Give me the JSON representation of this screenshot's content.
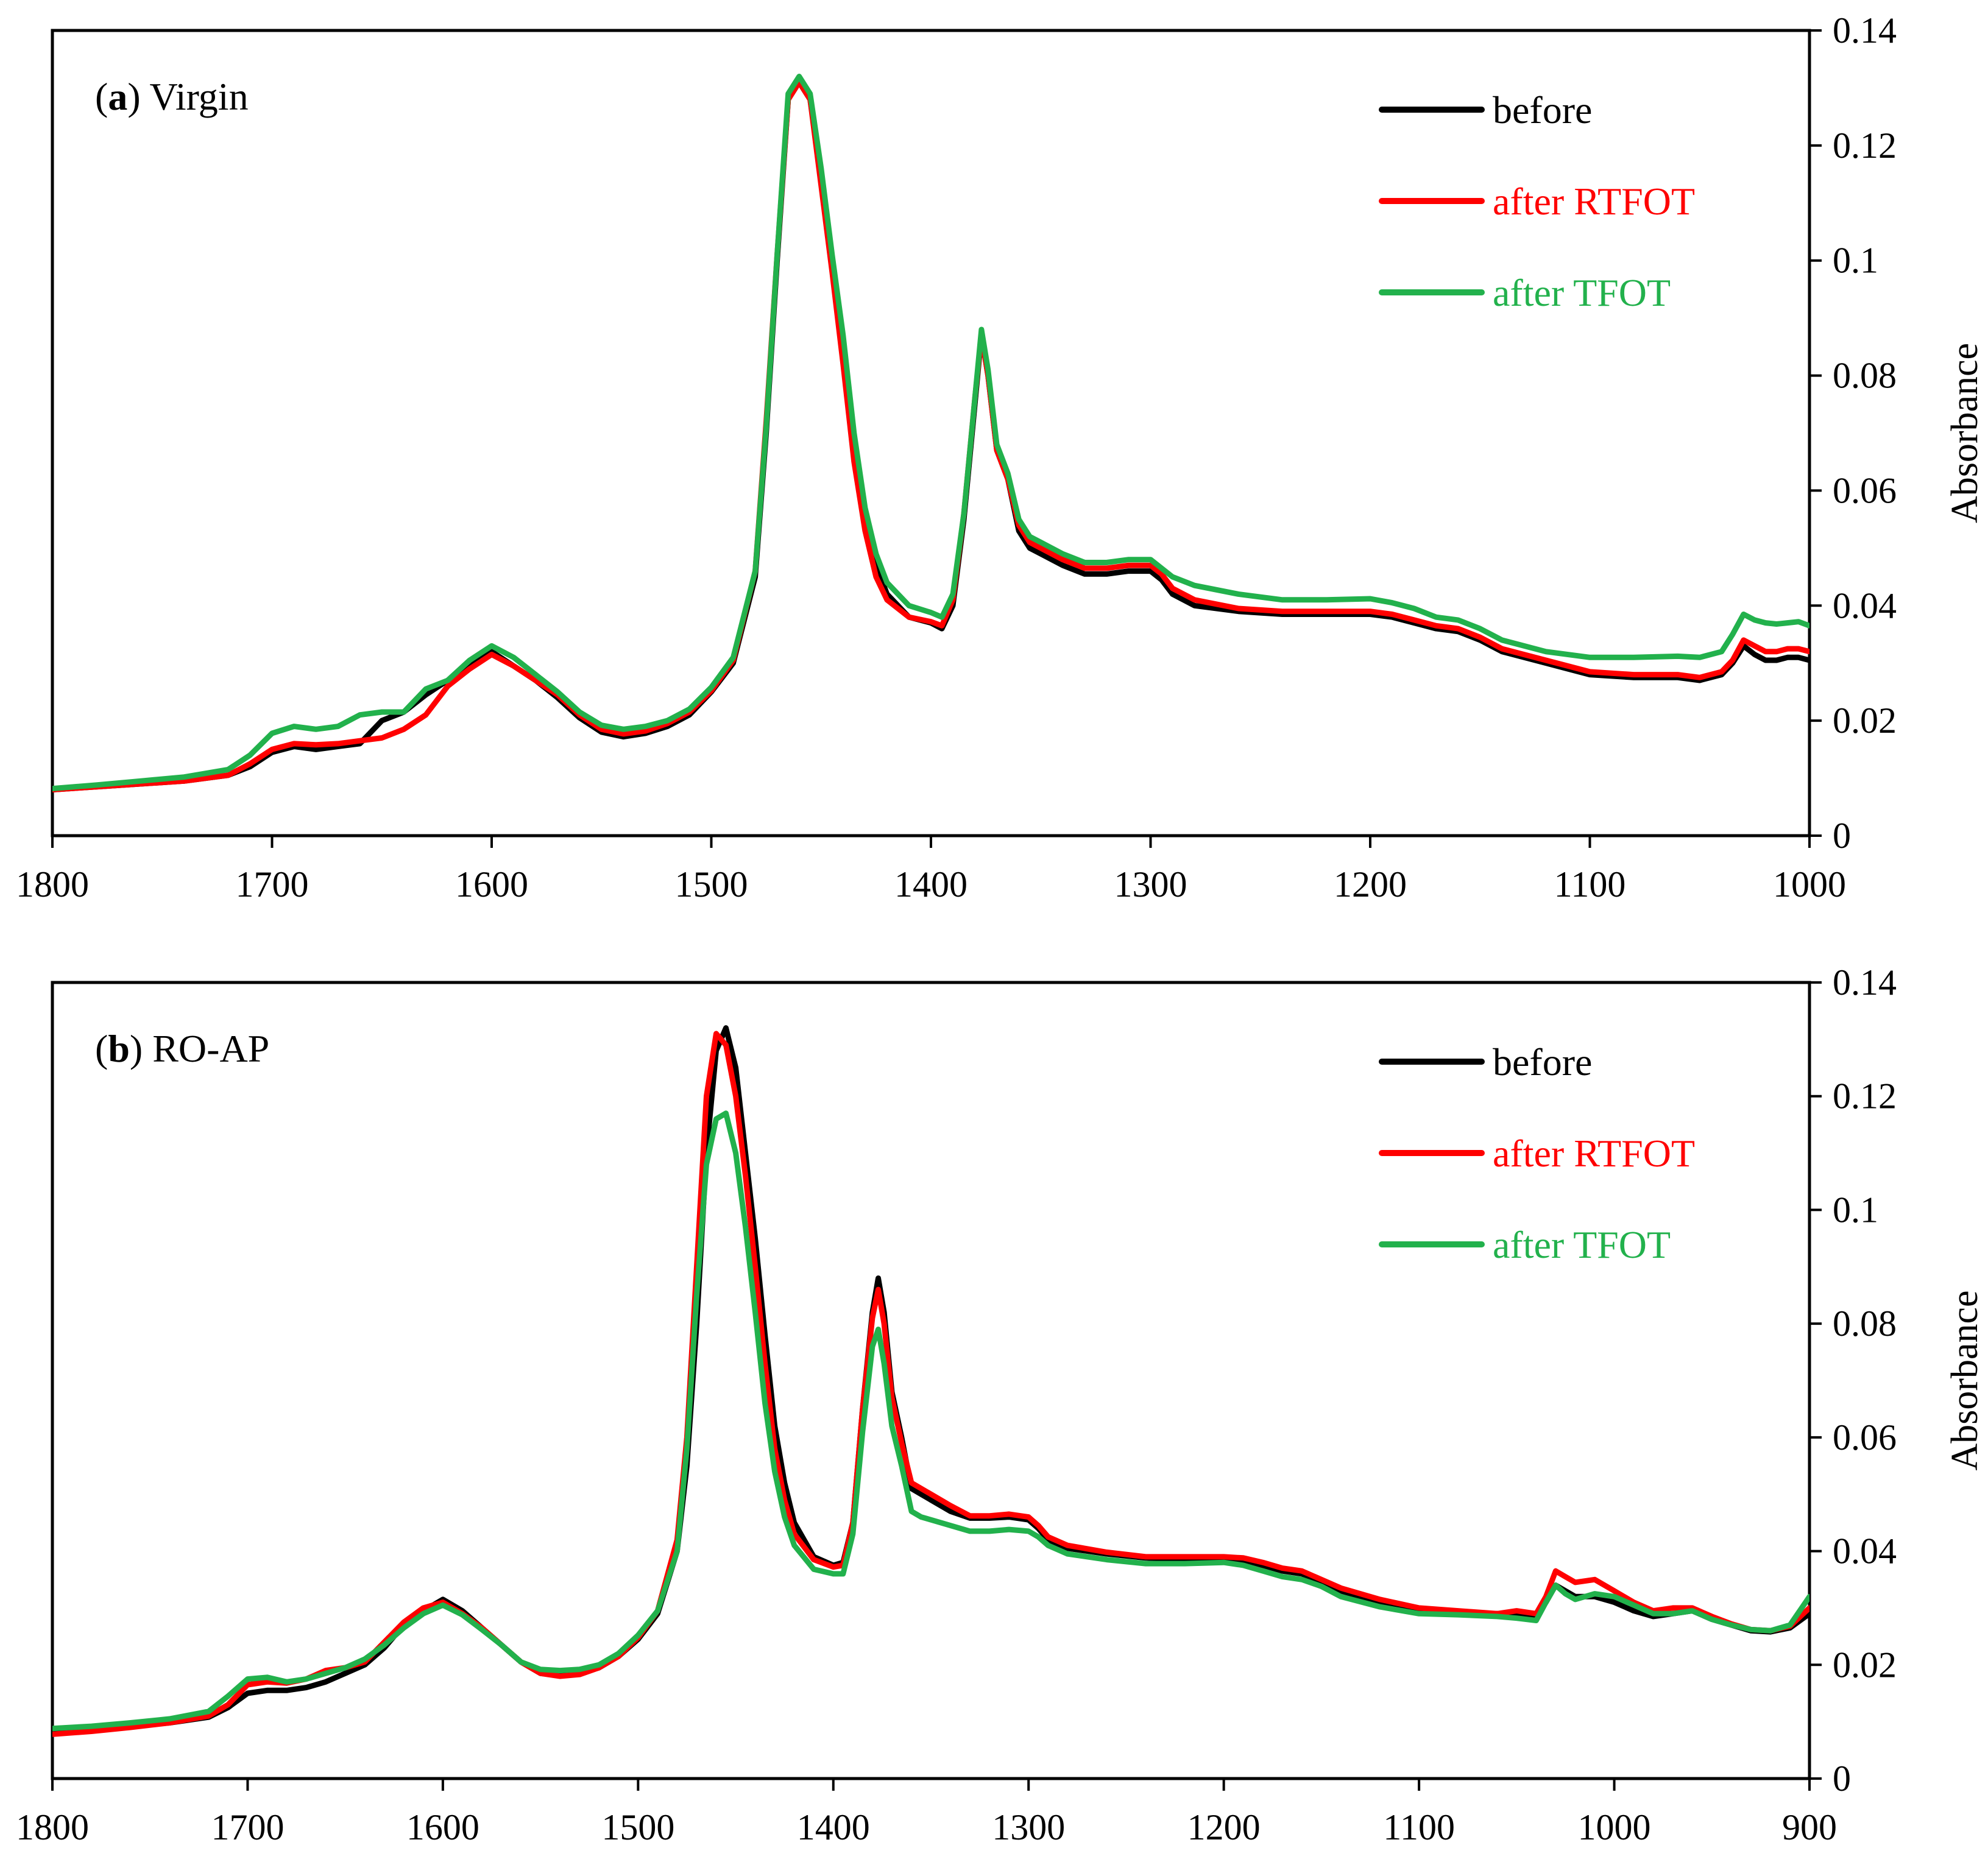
{
  "chart_data": [
    {
      "type": "line",
      "panel_label": "a",
      "title": "Virgin",
      "xlabel": "",
      "ylabel": "Absorbance",
      "xlim": [
        1800,
        1000
      ],
      "ylim": [
        0,
        0.14
      ],
      "x_ticks": [
        "1800",
        "1700",
        "1600",
        "1500",
        "1400",
        "1300",
        "1200",
        "1100",
        "1000"
      ],
      "x_tick_values": [
        1800,
        1700,
        1600,
        1500,
        1400,
        1300,
        1200,
        1100,
        1000
      ],
      "y_ticks": [
        "0",
        "0.02",
        "0.04",
        "0.06",
        "0.08",
        "0.1",
        "0.12",
        "0.14"
      ],
      "y_tick_values": [
        0,
        0.02,
        0.04,
        0.06,
        0.08,
        0.1,
        0.12,
        0.14
      ],
      "legend_position": "top-right",
      "grid": false,
      "x": [
        1800,
        1780,
        1760,
        1740,
        1720,
        1710,
        1700,
        1690,
        1680,
        1670,
        1660,
        1650,
        1640,
        1630,
        1620,
        1610,
        1600,
        1590,
        1580,
        1570,
        1560,
        1550,
        1540,
        1530,
        1520,
        1510,
        1500,
        1490,
        1480,
        1475,
        1470,
        1465,
        1460,
        1455,
        1450,
        1445,
        1440,
        1435,
        1430,
        1425,
        1420,
        1410,
        1400,
        1395,
        1390,
        1385,
        1380,
        1377,
        1374,
        1370,
        1365,
        1360,
        1355,
        1350,
        1340,
        1330,
        1320,
        1310,
        1300,
        1295,
        1290,
        1280,
        1260,
        1240,
        1220,
        1200,
        1190,
        1180,
        1170,
        1160,
        1150,
        1140,
        1120,
        1100,
        1080,
        1060,
        1050,
        1040,
        1035,
        1030,
        1025,
        1020,
        1015,
        1010,
        1005,
        1000
      ],
      "series": [
        {
          "name": "before",
          "color": "#000000",
          "values": [
            0.008,
            0.0085,
            0.009,
            0.0095,
            0.0105,
            0.012,
            0.0145,
            0.0155,
            0.015,
            0.0155,
            0.016,
            0.02,
            0.0215,
            0.0245,
            0.027,
            0.0295,
            0.032,
            0.0295,
            0.027,
            0.024,
            0.0205,
            0.018,
            0.0172,
            0.0178,
            0.019,
            0.021,
            0.025,
            0.03,
            0.045,
            0.07,
            0.1,
            0.128,
            0.131,
            0.128,
            0.115,
            0.1,
            0.085,
            0.068,
            0.055,
            0.047,
            0.042,
            0.038,
            0.037,
            0.036,
            0.04,
            0.055,
            0.075,
            0.087,
            0.08,
            0.067,
            0.062,
            0.053,
            0.05,
            0.049,
            0.047,
            0.0455,
            0.0455,
            0.046,
            0.046,
            0.0445,
            0.042,
            0.04,
            0.039,
            0.0385,
            0.0385,
            0.0385,
            0.038,
            0.037,
            0.036,
            0.0355,
            0.034,
            0.032,
            0.03,
            0.028,
            0.0275,
            0.0275,
            0.027,
            0.028,
            0.03,
            0.033,
            0.0315,
            0.0305,
            0.0305,
            0.031,
            0.031,
            0.0305
          ]
        },
        {
          "name": "after RTFOT",
          "color": "#ff0000",
          "values": [
            0.008,
            0.0085,
            0.009,
            0.0095,
            0.0105,
            0.0125,
            0.015,
            0.016,
            0.0158,
            0.016,
            0.0165,
            0.017,
            0.0185,
            0.021,
            0.026,
            0.029,
            0.0315,
            0.0295,
            0.027,
            0.0245,
            0.021,
            0.0185,
            0.0177,
            0.0182,
            0.0195,
            0.0215,
            0.0252,
            0.0305,
            0.046,
            0.072,
            0.101,
            0.128,
            0.131,
            0.128,
            0.113,
            0.098,
            0.082,
            0.065,
            0.053,
            0.045,
            0.041,
            0.038,
            0.0372,
            0.0365,
            0.041,
            0.056,
            0.076,
            0.087,
            0.08,
            0.067,
            0.062,
            0.054,
            0.051,
            0.05,
            0.048,
            0.0465,
            0.0465,
            0.047,
            0.047,
            0.0455,
            0.043,
            0.041,
            0.0395,
            0.039,
            0.039,
            0.039,
            0.0385,
            0.0375,
            0.0365,
            0.036,
            0.0345,
            0.0325,
            0.0305,
            0.0285,
            0.028,
            0.028,
            0.0275,
            0.0285,
            0.0305,
            0.034,
            0.033,
            0.032,
            0.032,
            0.0325,
            0.0325,
            0.032
          ]
        },
        {
          "name": "after TFOT",
          "color": "#22b14c",
          "values": [
            0.0082,
            0.0088,
            0.0095,
            0.0102,
            0.0115,
            0.014,
            0.0178,
            0.019,
            0.0185,
            0.019,
            0.021,
            0.0215,
            0.0215,
            0.0255,
            0.027,
            0.0305,
            0.033,
            0.031,
            0.028,
            0.025,
            0.0215,
            0.0192,
            0.0185,
            0.019,
            0.02,
            0.022,
            0.0258,
            0.031,
            0.046,
            0.071,
            0.101,
            0.129,
            0.132,
            0.129,
            0.116,
            0.101,
            0.087,
            0.07,
            0.057,
            0.049,
            0.044,
            0.04,
            0.0388,
            0.038,
            0.042,
            0.056,
            0.076,
            0.088,
            0.081,
            0.068,
            0.063,
            0.055,
            0.052,
            0.051,
            0.049,
            0.0475,
            0.0475,
            0.048,
            0.048,
            0.0465,
            0.045,
            0.0435,
            0.042,
            0.041,
            0.041,
            0.0412,
            0.0405,
            0.0395,
            0.038,
            0.0375,
            0.036,
            0.034,
            0.032,
            0.031,
            0.031,
            0.0312,
            0.031,
            0.032,
            0.035,
            0.0385,
            0.0375,
            0.037,
            0.0368,
            0.037,
            0.0372,
            0.0365
          ]
        }
      ],
      "legend_entries": [
        "before",
        "after RTFOT",
        "after TFOT"
      ]
    },
    {
      "type": "line",
      "panel_label": "b",
      "title": "RO-AP",
      "xlabel": "",
      "ylabel": "Absorbance",
      "xlim": [
        1800,
        900
      ],
      "ylim": [
        0,
        0.14
      ],
      "x_ticks": [
        "1800",
        "1700",
        "1600",
        "1500",
        "1400",
        "1300",
        "1200",
        "1100",
        "1000",
        "900"
      ],
      "x_tick_values": [
        1800,
        1700,
        1600,
        1500,
        1400,
        1300,
        1200,
        1100,
        1000,
        900
      ],
      "y_ticks": [
        "0",
        "0.02",
        "0.04",
        "0.06",
        "0.08",
        "0.1",
        "0.12",
        "0.14"
      ],
      "y_tick_values": [
        0,
        0.02,
        0.04,
        0.06,
        0.08,
        0.1,
        0.12,
        0.14
      ],
      "legend_position": "top-right",
      "grid": false,
      "x": [
        1800,
        1780,
        1760,
        1740,
        1720,
        1710,
        1700,
        1690,
        1680,
        1670,
        1660,
        1650,
        1640,
        1630,
        1620,
        1610,
        1600,
        1590,
        1580,
        1570,
        1560,
        1550,
        1540,
        1530,
        1520,
        1510,
        1500,
        1490,
        1480,
        1475,
        1470,
        1465,
        1460,
        1455,
        1450,
        1445,
        1440,
        1435,
        1430,
        1425,
        1420,
        1410,
        1400,
        1395,
        1390,
        1385,
        1380,
        1377,
        1374,
        1370,
        1365,
        1360,
        1355,
        1350,
        1340,
        1330,
        1320,
        1310,
        1300,
        1295,
        1290,
        1280,
        1260,
        1240,
        1220,
        1200,
        1190,
        1180,
        1170,
        1160,
        1150,
        1140,
        1120,
        1100,
        1080,
        1060,
        1050,
        1040,
        1035,
        1030,
        1025,
        1020,
        1010,
        1000,
        990,
        980,
        970,
        960,
        950,
        940,
        930,
        920,
        910,
        900
      ],
      "series": [
        {
          "name": "before",
          "color": "#000000",
          "values": [
            0.008,
            0.0085,
            0.0092,
            0.0098,
            0.0108,
            0.0125,
            0.015,
            0.0155,
            0.0155,
            0.016,
            0.017,
            0.0185,
            0.02,
            0.023,
            0.027,
            0.0295,
            0.0315,
            0.0295,
            0.0265,
            0.0235,
            0.0205,
            0.0185,
            0.0182,
            0.0185,
            0.0195,
            0.0215,
            0.0245,
            0.029,
            0.04,
            0.055,
            0.08,
            0.11,
            0.128,
            0.132,
            0.125,
            0.11,
            0.095,
            0.078,
            0.062,
            0.052,
            0.045,
            0.039,
            0.0375,
            0.038,
            0.045,
            0.065,
            0.082,
            0.088,
            0.082,
            0.068,
            0.06,
            0.051,
            0.05,
            0.049,
            0.047,
            0.0458,
            0.0458,
            0.046,
            0.0455,
            0.044,
            0.042,
            0.0405,
            0.0395,
            0.0388,
            0.0385,
            0.0385,
            0.038,
            0.0375,
            0.0365,
            0.036,
            0.0345,
            0.033,
            0.031,
            0.0295,
            0.029,
            0.029,
            0.029,
            0.0285,
            0.031,
            0.034,
            0.033,
            0.032,
            0.032,
            0.031,
            0.0295,
            0.0285,
            0.029,
            0.0295,
            0.028,
            0.027,
            0.026,
            0.0258,
            0.0265,
            0.029
          ]
        },
        {
          "name": "after RTFOT",
          "color": "#ff0000",
          "values": [
            0.0078,
            0.0083,
            0.009,
            0.0098,
            0.011,
            0.013,
            0.0165,
            0.017,
            0.0168,
            0.0175,
            0.019,
            0.0195,
            0.0205,
            0.024,
            0.0275,
            0.03,
            0.031,
            0.029,
            0.0265,
            0.0235,
            0.0205,
            0.0185,
            0.018,
            0.0183,
            0.0195,
            0.0215,
            0.0248,
            0.0295,
            0.042,
            0.06,
            0.09,
            0.12,
            0.131,
            0.129,
            0.12,
            0.106,
            0.09,
            0.073,
            0.058,
            0.049,
            0.043,
            0.0385,
            0.0372,
            0.0375,
            0.045,
            0.065,
            0.081,
            0.086,
            0.08,
            0.067,
            0.059,
            0.052,
            0.051,
            0.05,
            0.048,
            0.0462,
            0.0462,
            0.0465,
            0.046,
            0.0445,
            0.0425,
            0.041,
            0.0398,
            0.039,
            0.039,
            0.039,
            0.0388,
            0.038,
            0.037,
            0.0365,
            0.035,
            0.0335,
            0.0315,
            0.03,
            0.0295,
            0.029,
            0.0295,
            0.029,
            0.032,
            0.0365,
            0.0355,
            0.0345,
            0.035,
            0.033,
            0.031,
            0.0295,
            0.03,
            0.03,
            0.0285,
            0.0272,
            0.0262,
            0.026,
            0.0268,
            0.03
          ]
        },
        {
          "name": "after TFOT",
          "color": "#22b14c",
          "values": [
            0.0088,
            0.0092,
            0.0098,
            0.0105,
            0.0118,
            0.0145,
            0.0175,
            0.0178,
            0.017,
            0.0175,
            0.0185,
            0.0195,
            0.021,
            0.0235,
            0.0265,
            0.029,
            0.0305,
            0.0288,
            0.0262,
            0.0235,
            0.0205,
            0.0192,
            0.019,
            0.0192,
            0.02,
            0.022,
            0.0252,
            0.0295,
            0.04,
            0.058,
            0.085,
            0.108,
            0.116,
            0.117,
            0.11,
            0.097,
            0.082,
            0.066,
            0.054,
            0.046,
            0.041,
            0.0368,
            0.036,
            0.036,
            0.043,
            0.061,
            0.076,
            0.079,
            0.073,
            0.062,
            0.055,
            0.047,
            0.046,
            0.0455,
            0.0445,
            0.0435,
            0.0435,
            0.0438,
            0.0435,
            0.0425,
            0.041,
            0.0395,
            0.0385,
            0.0378,
            0.0378,
            0.038,
            0.0375,
            0.0365,
            0.0355,
            0.035,
            0.0338,
            0.032,
            0.0302,
            0.029,
            0.0288,
            0.0285,
            0.0282,
            0.0278,
            0.031,
            0.034,
            0.0325,
            0.0315,
            0.0325,
            0.032,
            0.0305,
            0.029,
            0.029,
            0.0295,
            0.028,
            0.027,
            0.0262,
            0.026,
            0.027,
            0.032
          ]
        }
      ],
      "legend_entries": [
        "before",
        "after RTFOT",
        "after TFOT"
      ]
    }
  ]
}
